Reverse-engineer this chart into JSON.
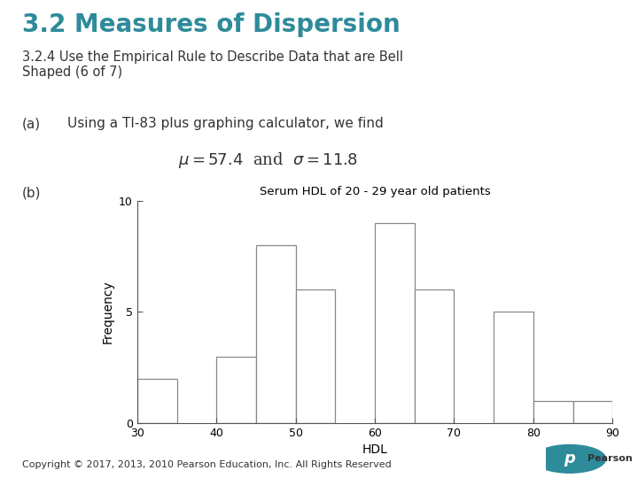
{
  "title": "3.2 Measures of Dispersion",
  "subtitle_line1": "3.2.4 Use the Empirical Rule to Describe Data that are Bell",
  "subtitle_line2": "Shaped (6 of 7)",
  "subtitle_of7": " (6 of 7)",
  "title_color": "#2e8b9a",
  "subtitle_color": "#333333",
  "part_a_label": "(a)",
  "part_a_text": "Using a TI-83 plus graphing calculator, we find",
  "part_b_label": "(b)",
  "hist_title": "Serum HDL of 20 - 29 year old patients",
  "hist_xlabel": "HDL",
  "hist_ylabel": "Frequency",
  "bar_lefts": [
    30,
    40,
    45,
    50,
    60,
    65,
    75,
    80,
    85
  ],
  "bar_widths": [
    5,
    5,
    5,
    5,
    5,
    5,
    5,
    5,
    5
  ],
  "bar_heights": [
    2,
    3,
    8,
    6,
    9,
    6,
    5,
    1,
    1
  ],
  "hist_xlim": [
    30,
    90
  ],
  "hist_ylim": [
    0,
    10
  ],
  "hist_xticks": [
    30,
    40,
    50,
    60,
    70,
    80,
    90
  ],
  "hist_yticks": [
    0,
    5,
    10
  ],
  "copyright": "Copyright © 2017, 2013, 2010 Pearson Education, Inc. All Rights Reserved",
  "bg_color": "#ffffff",
  "bar_facecolor": "#ffffff",
  "bar_edgecolor": "#888888",
  "pearson_color": "#2e8b9a"
}
